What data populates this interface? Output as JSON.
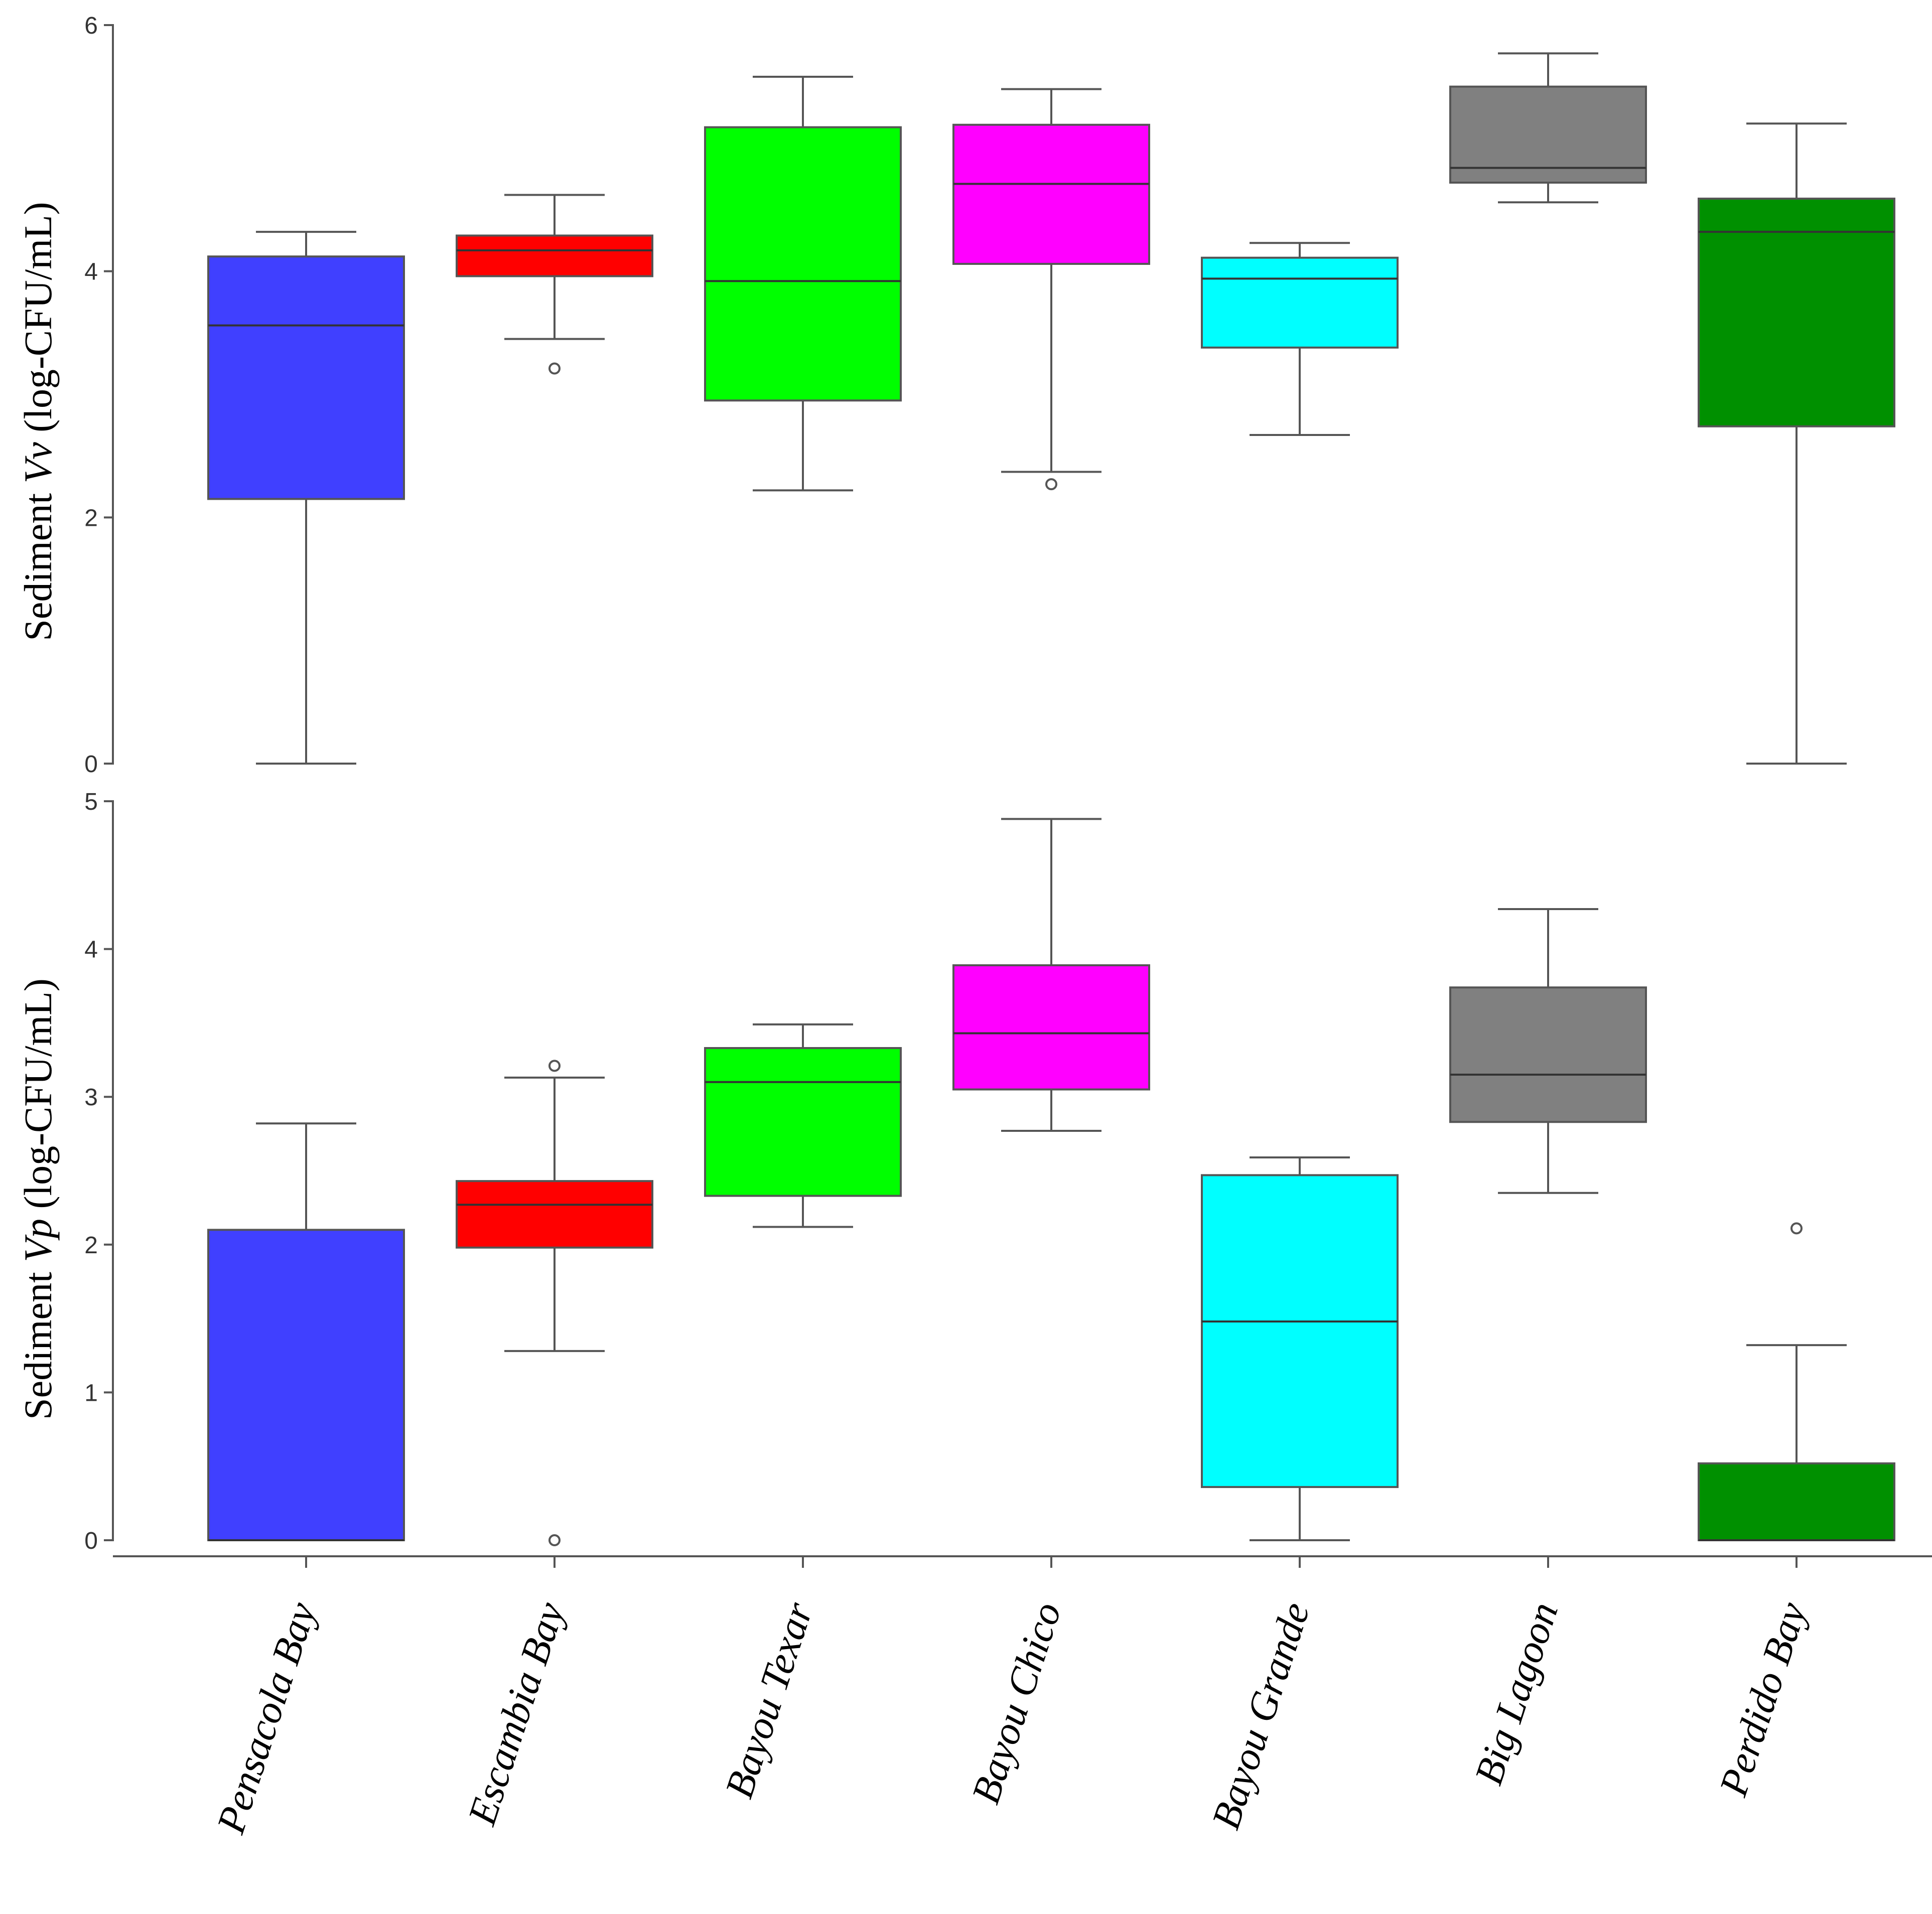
{
  "chart_data": [
    {
      "type": "boxplot",
      "ylabel_prefix": "Sediment ",
      "ylabel_italic": "Vv",
      "ylabel_suffix": " (log-CFU/mL)",
      "ylim": [
        0,
        6
      ],
      "yticks": [
        0,
        2,
        4,
        6
      ],
      "series": [
        {
          "name": "Pensacola Bay",
          "color": "#4040ff",
          "whisker_low": 0.0,
          "q1": 2.15,
          "median": 3.56,
          "q3": 4.12,
          "whisker_high": 4.32,
          "outliers": []
        },
        {
          "name": "Escambia Bay",
          "color": "#ff0000",
          "whisker_low": 3.45,
          "q1": 3.96,
          "median": 4.17,
          "q3": 4.29,
          "whisker_high": 4.62,
          "outliers": [
            3.21
          ]
        },
        {
          "name": "Bayou Texar",
          "color": "#00ff00",
          "whisker_low": 2.22,
          "q1": 2.95,
          "median": 3.92,
          "q3": 5.17,
          "whisker_high": 5.58,
          "outliers": []
        },
        {
          "name": "Bayou Chico",
          "color": "#ff00ff",
          "whisker_low": 2.37,
          "q1": 4.06,
          "median": 4.71,
          "q3": 5.19,
          "whisker_high": 5.48,
          "outliers": [
            2.27
          ]
        },
        {
          "name": "Bayou Grande",
          "color": "#00ffff",
          "whisker_low": 2.67,
          "q1": 3.38,
          "median": 3.94,
          "q3": 4.11,
          "whisker_high": 4.23,
          "outliers": []
        },
        {
          "name": "Big Lagoon",
          "color": "#808080",
          "whisker_low": 4.56,
          "q1": 4.72,
          "median": 4.84,
          "q3": 5.5,
          "whisker_high": 5.77,
          "outliers": []
        },
        {
          "name": "Perdido Bay",
          "color": "#009000",
          "whisker_low": 0.0,
          "q1": 2.74,
          "median": 4.32,
          "q3": 4.59,
          "whisker_high": 5.2,
          "outliers": []
        }
      ]
    },
    {
      "type": "boxplot",
      "ylabel_prefix": "Sediment ",
      "ylabel_italic": "Vp",
      "ylabel_suffix": " (log-CFU/mL)",
      "ylim": [
        0,
        5
      ],
      "yticks": [
        0,
        1,
        2,
        3,
        4,
        5
      ],
      "series": [
        {
          "name": "Pensacola Bay",
          "color": "#4040ff",
          "whisker_low": 0.0,
          "q1": 0.0,
          "median": 0.0,
          "q3": 2.1,
          "whisker_high": 2.82,
          "outliers": []
        },
        {
          "name": "Escambia Bay",
          "color": "#ff0000",
          "whisker_low": 1.28,
          "q1": 1.98,
          "median": 2.27,
          "q3": 2.43,
          "whisker_high": 3.13,
          "outliers": [
            3.21,
            0.0
          ]
        },
        {
          "name": "Bayou Texar",
          "color": "#00ff00",
          "whisker_low": 2.12,
          "q1": 2.33,
          "median": 3.1,
          "q3": 3.33,
          "whisker_high": 3.49,
          "outliers": []
        },
        {
          "name": "Bayou Chico",
          "color": "#ff00ff",
          "whisker_low": 2.77,
          "q1": 3.05,
          "median": 3.43,
          "q3": 3.89,
          "whisker_high": 4.88,
          "outliers": []
        },
        {
          "name": "Bayou Grande",
          "color": "#00ffff",
          "whisker_low": 0.0,
          "q1": 0.36,
          "median": 1.48,
          "q3": 2.47,
          "whisker_high": 2.59,
          "outliers": []
        },
        {
          "name": "Big Lagoon",
          "color": "#808080",
          "whisker_low": 2.35,
          "q1": 2.83,
          "median": 3.15,
          "q3": 3.74,
          "whisker_high": 4.27,
          "outliers": []
        },
        {
          "name": "Perdido Bay",
          "color": "#009000",
          "whisker_low": 0.0,
          "q1": 0.0,
          "median": 0.0,
          "q3": 0.52,
          "whisker_high": 1.32,
          "outliers": [
            2.11
          ]
        }
      ]
    }
  ],
  "categories": [
    "Pensacola Bay",
    "Escambia Bay",
    "Bayou Texar",
    "Bayou Chico",
    "Bayou Grande",
    "Big Lagoon",
    "Perdido Bay"
  ]
}
